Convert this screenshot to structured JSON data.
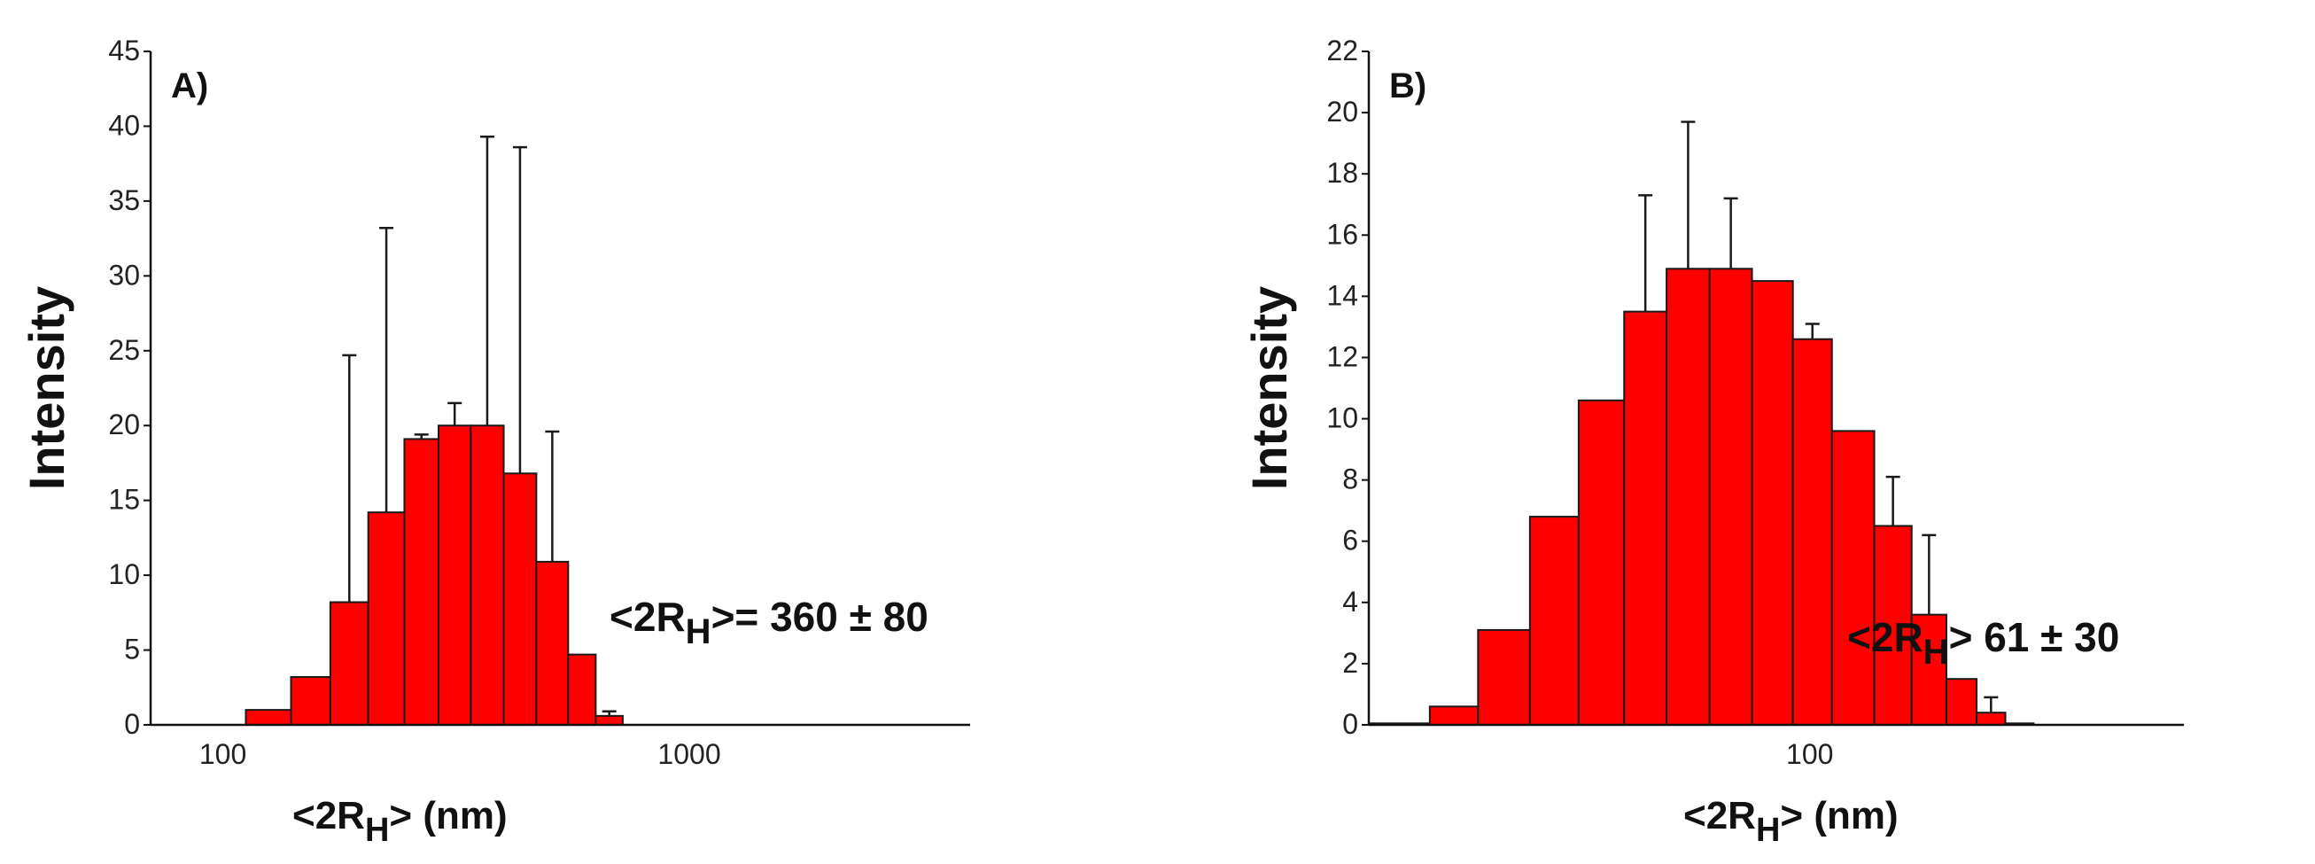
{
  "chart_data": [
    {
      "type": "bar",
      "panel": "A)",
      "xscale": "log",
      "xlim": [
        70,
        4000
      ],
      "ylim": [
        0,
        45
      ],
      "yticks": [
        0,
        5,
        10,
        15,
        20,
        25,
        30,
        35,
        40,
        45
      ],
      "xticks": [
        100,
        1000
      ],
      "xticklabels": [
        "100",
        "1000"
      ],
      "ylabel": "Intensity",
      "xlabel_main": "<2R",
      "xlabel_sub": "H",
      "xlabel_tail": "> (nm)",
      "annotation_main": "<2R",
      "annotation_sub": "H",
      "annotation_tail": ">= 360 ± 80",
      "bar_color": "#ff0000",
      "bins": [
        {
          "x0": 112,
          "x1": 140,
          "value": 1.0,
          "err": 0
        },
        {
          "x0": 140,
          "x1": 170,
          "value": 3.2,
          "err": 0
        },
        {
          "x0": 170,
          "x1": 205,
          "value": 8.2,
          "err": 16.5
        },
        {
          "x0": 205,
          "x1": 245,
          "value": 14.2,
          "err": 19.0
        },
        {
          "x0": 245,
          "x1": 290,
          "value": 19.1,
          "err": 0.3
        },
        {
          "x0": 290,
          "x1": 340,
          "value": 20.0,
          "err": 1.5
        },
        {
          "x0": 340,
          "x1": 400,
          "value": 20.0,
          "err": 19.3
        },
        {
          "x0": 400,
          "x1": 470,
          "value": 16.8,
          "err": 21.8
        },
        {
          "x0": 470,
          "x1": 550,
          "value": 10.9,
          "err": 8.7
        },
        {
          "x0": 550,
          "x1": 630,
          "value": 4.7,
          "err": 0
        },
        {
          "x0": 630,
          "x1": 720,
          "value": 0.6,
          "err": 0.3
        }
      ]
    },
    {
      "type": "bar",
      "panel": "B)",
      "xscale": "log",
      "xlim": [
        15,
        500
      ],
      "ylim": [
        0,
        22
      ],
      "yticks": [
        0,
        2,
        4,
        6,
        8,
        10,
        12,
        14,
        16,
        18,
        20,
        22
      ],
      "xticks": [
        100
      ],
      "xticklabels": [
        "100"
      ],
      "ylabel": "Intensity",
      "xlabel_main": "<2R",
      "xlabel_sub": "H",
      "xlabel_tail": "> (nm)",
      "annotation_main": "<2R",
      "annotation_sub": "H",
      "annotation_tail": "> 61 ± 30",
      "bar_color": "#ff0000",
      "bins": [
        {
          "x0": 15,
          "x1": 19.5,
          "value": 0.05,
          "err": 0
        },
        {
          "x0": 19.5,
          "x1": 24,
          "value": 0.6,
          "err": 0
        },
        {
          "x0": 24,
          "x1": 30,
          "value": 3.1,
          "err": 0
        },
        {
          "x0": 30,
          "x1": 37,
          "value": 6.8,
          "err": 0
        },
        {
          "x0": 37,
          "x1": 45,
          "value": 10.6,
          "err": 0
        },
        {
          "x0": 45,
          "x1": 54,
          "value": 13.5,
          "err": 3.8
        },
        {
          "x0": 54,
          "x1": 65,
          "value": 14.9,
          "err": 4.8
        },
        {
          "x0": 65,
          "x1": 78,
          "value": 14.9,
          "err": 2.3
        },
        {
          "x0": 78,
          "x1": 93,
          "value": 14.5,
          "err": 0
        },
        {
          "x0": 93,
          "x1": 110,
          "value": 12.6,
          "err": 0.5
        },
        {
          "x0": 110,
          "x1": 132,
          "value": 9.6,
          "err": 0
        },
        {
          "x0": 132,
          "x1": 155,
          "value": 6.5,
          "err": 1.6
        },
        {
          "x0": 155,
          "x1": 180,
          "value": 3.6,
          "err": 2.6
        },
        {
          "x0": 180,
          "x1": 205,
          "value": 1.5,
          "err": 0
        },
        {
          "x0": 205,
          "x1": 232,
          "value": 0.4,
          "err": 0.5
        },
        {
          "x0": 232,
          "x1": 262,
          "value": 0.05,
          "err": 0
        }
      ]
    }
  ]
}
